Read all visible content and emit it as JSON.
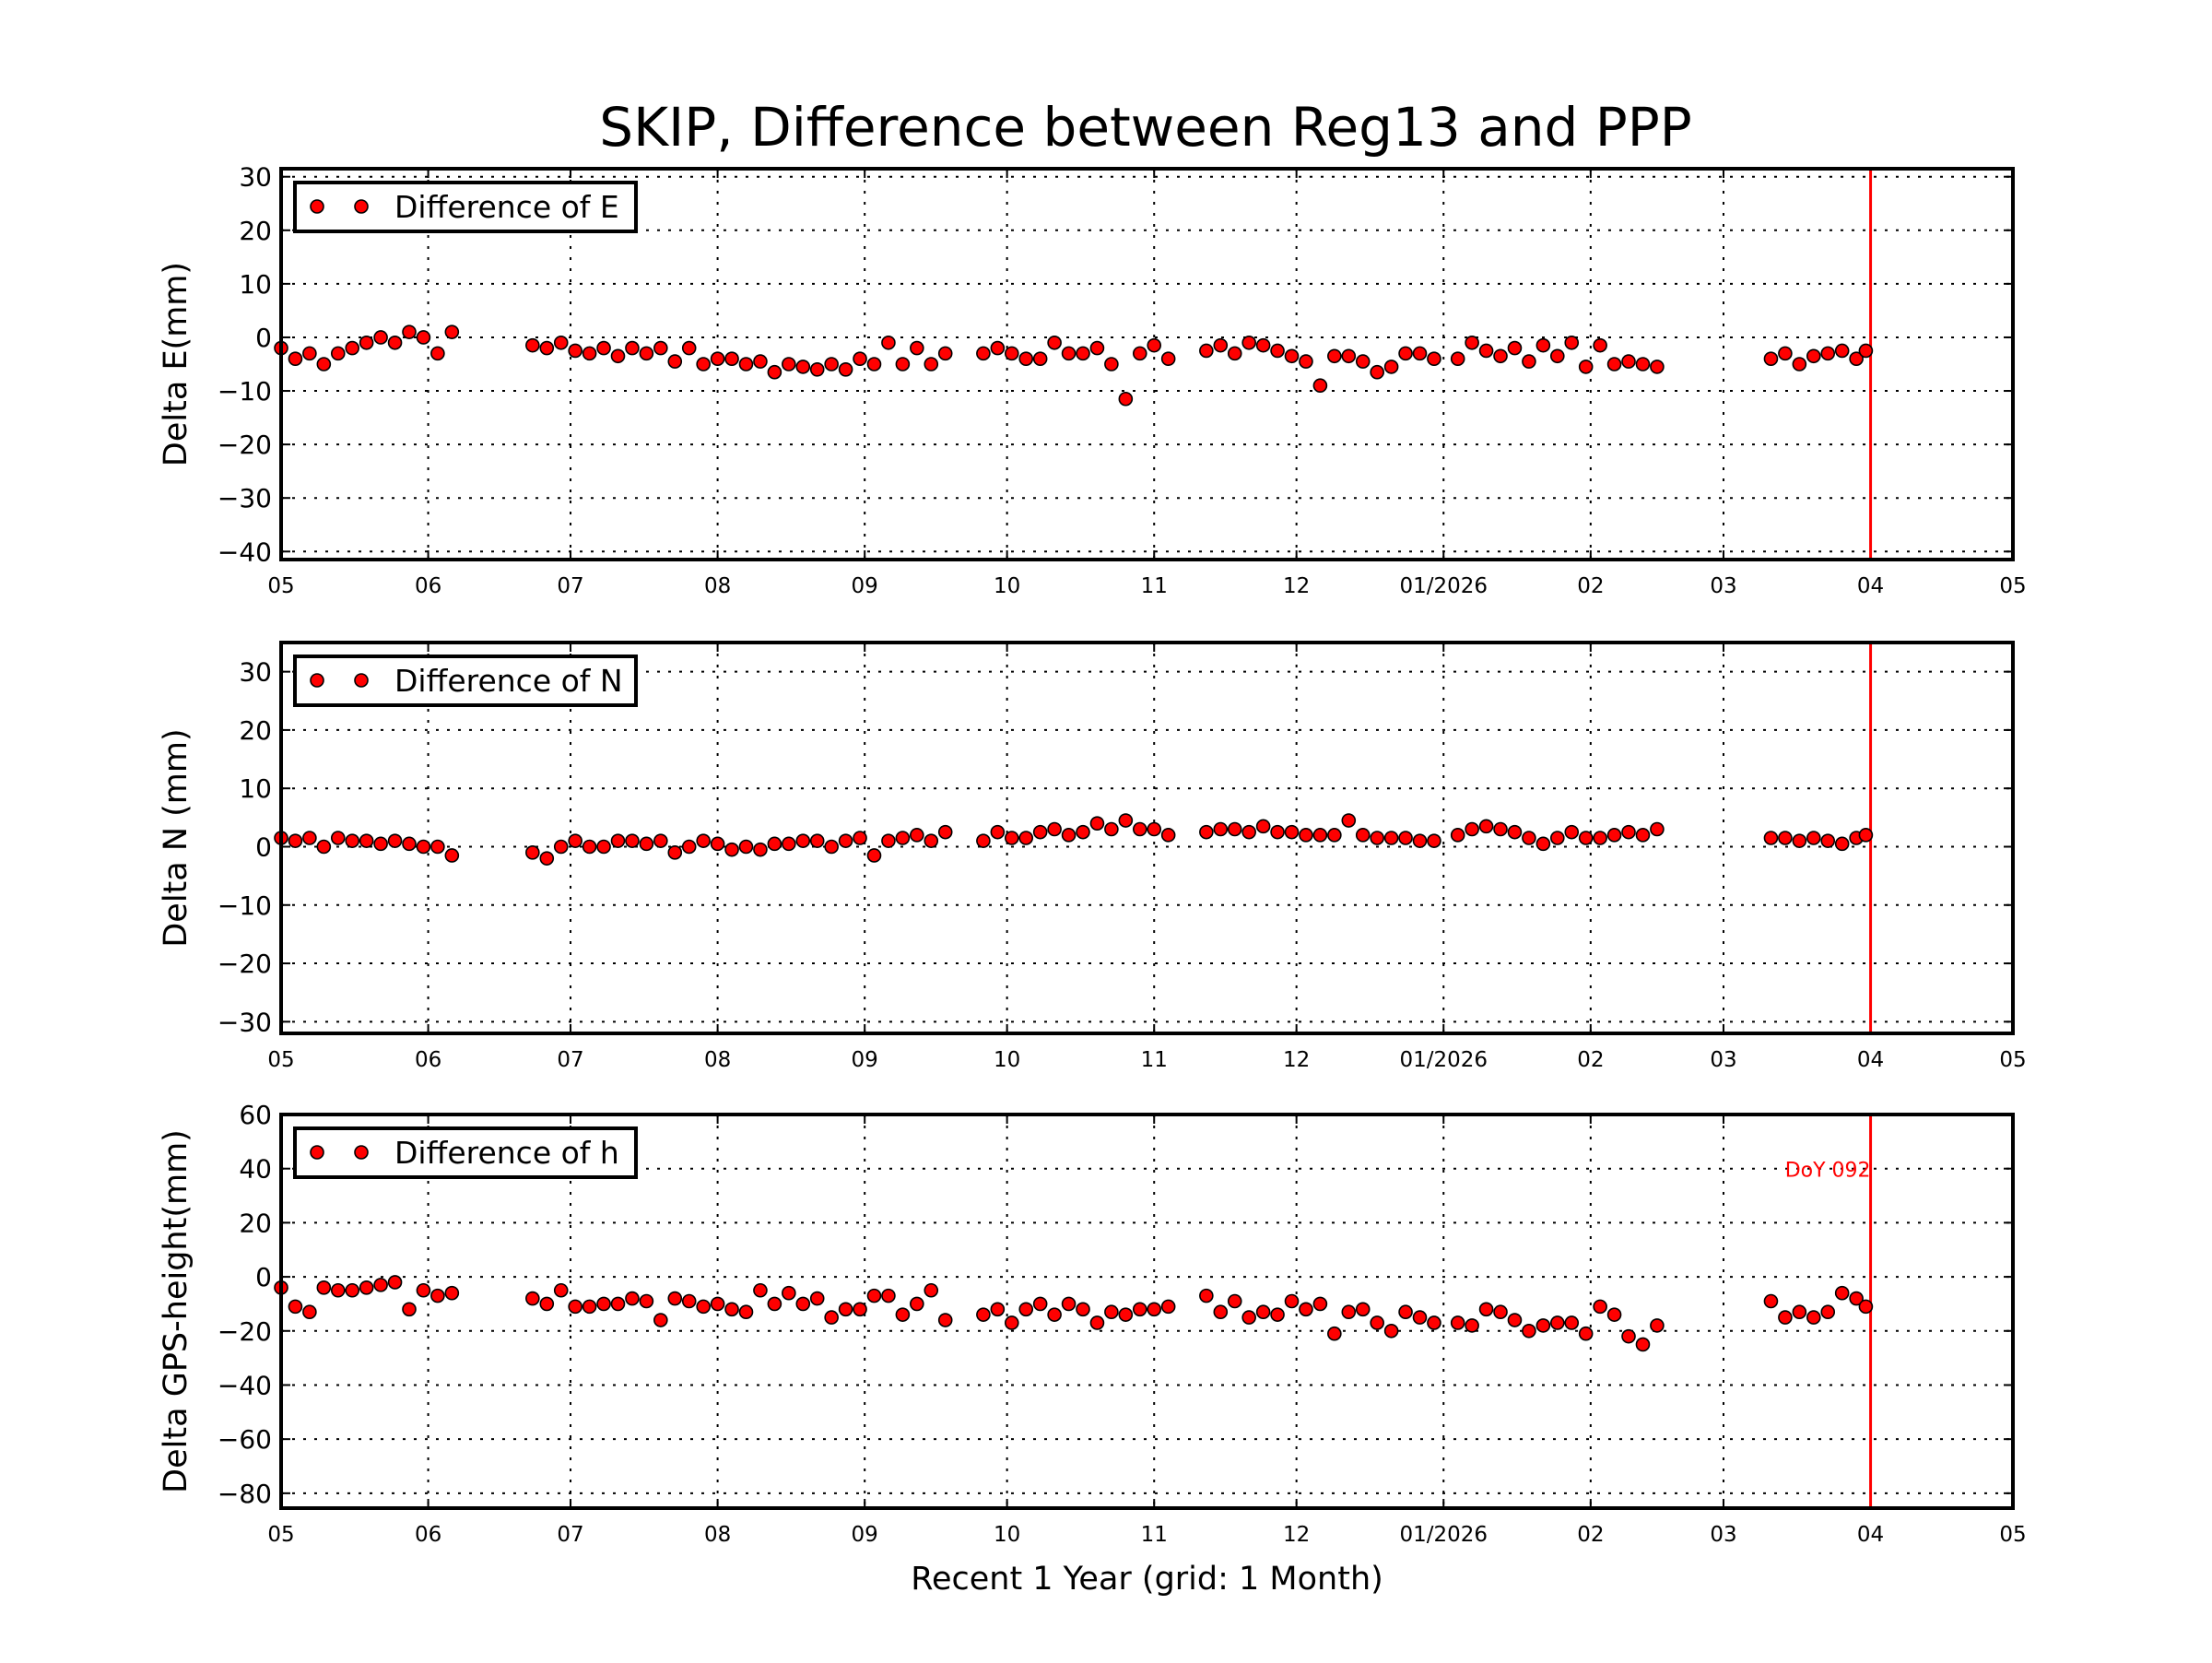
{
  "figure_title": "SKIP, Difference between Reg13 and PPP",
  "colors": {
    "marker": "#ff0000",
    "marker_edge": "#000000",
    "reference_line": "#ff0000"
  },
  "chart_data": [
    {
      "type": "scatter",
      "ylabel": "Delta E(mm)",
      "xlabel": "",
      "legend": {
        "label": "Difference of E",
        "position": "top-left"
      },
      "ylim": [
        -41.5,
        31.5
      ],
      "yticks": [
        "30",
        "20",
        "10",
        "0",
        "−10",
        "−20",
        "−30",
        "−40"
      ],
      "ytick_values": [
        30,
        20,
        10,
        0,
        -10,
        -20,
        -30,
        -40
      ],
      "xlim": [
        "2025-05-01",
        "2026-05-01"
      ],
      "xticks": [
        "05",
        "06",
        "07",
        "08",
        "09",
        "10",
        "11",
        "12",
        "01/2026",
        "02",
        "03",
        "04",
        "05"
      ],
      "xtick_dates": [
        "2025-05-01",
        "2025-06-01",
        "2025-07-01",
        "2025-08-01",
        "2025-09-01",
        "2025-10-01",
        "2025-11-01",
        "2025-12-01",
        "2026-01-01",
        "2026-02-01",
        "2026-03-01",
        "2026-04-01",
        "2026-05-01"
      ],
      "grid": true,
      "reference_line": "2026-04-01",
      "x": [
        "2025-05-01",
        "2025-05-04",
        "2025-05-07",
        "2025-05-10",
        "2025-05-13",
        "2025-05-16",
        "2025-05-19",
        "2025-05-22",
        "2025-05-25",
        "2025-05-28",
        "2025-05-31",
        "2025-06-03",
        "2025-06-06",
        "2025-06-23",
        "2025-06-26",
        "2025-06-29",
        "2025-07-02",
        "2025-07-05",
        "2025-07-08",
        "2025-07-11",
        "2025-07-14",
        "2025-07-17",
        "2025-07-20",
        "2025-07-23",
        "2025-07-26",
        "2025-07-29",
        "2025-08-01",
        "2025-08-04",
        "2025-08-07",
        "2025-08-10",
        "2025-08-13",
        "2025-08-16",
        "2025-08-19",
        "2025-08-22",
        "2025-08-25",
        "2025-08-28",
        "2025-08-31",
        "2025-09-03",
        "2025-09-06",
        "2025-09-09",
        "2025-09-12",
        "2025-09-15",
        "2025-09-18",
        "2025-09-26",
        "2025-09-29",
        "2025-10-02",
        "2025-10-05",
        "2025-10-08",
        "2025-10-11",
        "2025-10-14",
        "2025-10-17",
        "2025-10-20",
        "2025-10-23",
        "2025-10-26",
        "2025-10-29",
        "2025-11-01",
        "2025-11-04",
        "2025-11-12",
        "2025-11-15",
        "2025-11-18",
        "2025-11-21",
        "2025-11-24",
        "2025-11-27",
        "2025-11-30",
        "2025-12-03",
        "2025-12-06",
        "2025-12-09",
        "2025-12-12",
        "2025-12-15",
        "2025-12-18",
        "2025-12-21",
        "2025-12-24",
        "2025-12-27",
        "2025-12-30",
        "2026-01-04",
        "2026-01-07",
        "2026-01-10",
        "2026-01-13",
        "2026-01-16",
        "2026-01-19",
        "2026-01-22",
        "2026-01-25",
        "2026-01-28",
        "2026-01-31",
        "2026-02-03",
        "2026-02-06",
        "2026-02-09",
        "2026-02-12",
        "2026-02-15",
        "2026-03-11",
        "2026-03-14",
        "2026-03-17",
        "2026-03-20",
        "2026-03-23",
        "2026-03-26",
        "2026-03-29",
        "2026-03-31"
      ],
      "y": [
        -2,
        -4,
        -3,
        -5,
        -3,
        -2,
        -1,
        0,
        -1,
        1,
        0,
        -3,
        1,
        -1.5,
        -2,
        -1,
        -2.5,
        -3,
        -2,
        -3.5,
        -2,
        -3,
        -2,
        -4.5,
        -2,
        -5,
        -4,
        -4,
        -5,
        -4.5,
        -6.5,
        -5,
        -5.5,
        -6,
        -5,
        -6,
        -4,
        -5,
        -1,
        -5,
        -2,
        -5,
        -3,
        -3,
        -2,
        -3,
        -4,
        -4,
        -1,
        -3,
        -3,
        -2,
        -5,
        -11.5,
        -3,
        -1.5,
        -4,
        -2.5,
        -1.5,
        -3,
        -1,
        -1.5,
        -2.5,
        -3.5,
        -4.5,
        -9,
        -3.5,
        -3.5,
        -4.5,
        -6.5,
        -5.5,
        -3,
        -3,
        -4,
        -4,
        -1,
        -2.5,
        -3.5,
        -2,
        -4.5,
        -1.5,
        -3.5,
        -1,
        -5.5,
        -1.5,
        -5,
        -4.5,
        -5,
        -5.5,
        -4,
        -3,
        -5,
        -3.5,
        -3,
        -2.5,
        -4,
        -2.5
      ]
    },
    {
      "type": "scatter",
      "ylabel": "Delta N (mm)",
      "xlabel": "",
      "legend": {
        "label": "Difference of N",
        "position": "top-left"
      },
      "ylim": [
        -32,
        35
      ],
      "yticks": [
        "30",
        "20",
        "10",
        "0",
        "−10",
        "−20",
        "−30"
      ],
      "ytick_values": [
        30,
        20,
        10,
        0,
        -10,
        -20,
        -30
      ],
      "xlim": [
        "2025-05-01",
        "2026-05-01"
      ],
      "xticks": [
        "05",
        "06",
        "07",
        "08",
        "09",
        "10",
        "11",
        "12",
        "01/2026",
        "02",
        "03",
        "04",
        "05"
      ],
      "xtick_dates": [
        "2025-05-01",
        "2025-06-01",
        "2025-07-01",
        "2025-08-01",
        "2025-09-01",
        "2025-10-01",
        "2025-11-01",
        "2025-12-01",
        "2026-01-01",
        "2026-02-01",
        "2026-03-01",
        "2026-04-01",
        "2026-05-01"
      ],
      "grid": true,
      "reference_line": "2026-04-01",
      "x": [
        "2025-05-01",
        "2025-05-04",
        "2025-05-07",
        "2025-05-10",
        "2025-05-13",
        "2025-05-16",
        "2025-05-19",
        "2025-05-22",
        "2025-05-25",
        "2025-05-28",
        "2025-05-31",
        "2025-06-03",
        "2025-06-06",
        "2025-06-23",
        "2025-06-26",
        "2025-06-29",
        "2025-07-02",
        "2025-07-05",
        "2025-07-08",
        "2025-07-11",
        "2025-07-14",
        "2025-07-17",
        "2025-07-20",
        "2025-07-23",
        "2025-07-26",
        "2025-07-29",
        "2025-08-01",
        "2025-08-04",
        "2025-08-07",
        "2025-08-10",
        "2025-08-13",
        "2025-08-16",
        "2025-08-19",
        "2025-08-22",
        "2025-08-25",
        "2025-08-28",
        "2025-08-31",
        "2025-09-03",
        "2025-09-06",
        "2025-09-09",
        "2025-09-12",
        "2025-09-15",
        "2025-09-18",
        "2025-09-26",
        "2025-09-29",
        "2025-10-02",
        "2025-10-05",
        "2025-10-08",
        "2025-10-11",
        "2025-10-14",
        "2025-10-17",
        "2025-10-20",
        "2025-10-23",
        "2025-10-26",
        "2025-10-29",
        "2025-11-01",
        "2025-11-04",
        "2025-11-12",
        "2025-11-15",
        "2025-11-18",
        "2025-11-21",
        "2025-11-24",
        "2025-11-27",
        "2025-11-30",
        "2025-12-03",
        "2025-12-06",
        "2025-12-09",
        "2025-12-12",
        "2025-12-15",
        "2025-12-18",
        "2025-12-21",
        "2025-12-24",
        "2025-12-27",
        "2025-12-30",
        "2026-01-04",
        "2026-01-07",
        "2026-01-10",
        "2026-01-13",
        "2026-01-16",
        "2026-01-19",
        "2026-01-22",
        "2026-01-25",
        "2026-01-28",
        "2026-01-31",
        "2026-02-03",
        "2026-02-06",
        "2026-02-09",
        "2026-02-12",
        "2026-02-15",
        "2026-03-11",
        "2026-03-14",
        "2026-03-17",
        "2026-03-20",
        "2026-03-23",
        "2026-03-26",
        "2026-03-29",
        "2026-03-31"
      ],
      "y": [
        1.5,
        1,
        1.5,
        0,
        1.5,
        1,
        1,
        0.5,
        1,
        0.5,
        0,
        0,
        -1.5,
        -1,
        -2,
        0,
        1,
        0,
        0,
        1,
        1,
        0.5,
        1,
        -1,
        0,
        1,
        0.5,
        -0.5,
        0,
        -0.5,
        0.5,
        0.5,
        1,
        1,
        0,
        1,
        1.5,
        -1.5,
        1,
        1.5,
        2,
        1,
        2.5,
        1,
        2.5,
        1.5,
        1.5,
        2.5,
        3,
        2,
        2.5,
        4,
        3,
        4.5,
        3,
        3,
        2,
        2.5,
        3,
        3,
        2.5,
        3.5,
        2.5,
        2.5,
        2,
        2,
        2,
        4.5,
        2,
        1.5,
        1.5,
        1.5,
        1,
        1,
        2,
        3,
        3.5,
        3,
        2.5,
        1.5,
        0.5,
        1.5,
        2.5,
        1.5,
        1.5,
        2,
        2.5,
        2,
        3,
        1.5,
        1.5,
        1,
        1.5,
        1,
        0.5,
        1.5,
        2
      ]
    },
    {
      "type": "scatter",
      "ylabel": "Delta GPS-height(mm)",
      "xlabel": "Recent 1 Year (grid: 1 Month)",
      "legend": {
        "label": "Difference of h",
        "position": "top-left"
      },
      "annotation": "DoY 092",
      "ylim": [
        -85.5,
        60
      ],
      "yticks": [
        "60",
        "40",
        "20",
        "0",
        "−20",
        "−40",
        "−60",
        "−80"
      ],
      "ytick_values": [
        60,
        40,
        20,
        0,
        -20,
        -40,
        -60,
        -80
      ],
      "xlim": [
        "2025-05-01",
        "2026-05-01"
      ],
      "xticks": [
        "05",
        "06",
        "07",
        "08",
        "09",
        "10",
        "11",
        "12",
        "01/2026",
        "02",
        "03",
        "04",
        "05"
      ],
      "xtick_dates": [
        "2025-05-01",
        "2025-06-01",
        "2025-07-01",
        "2025-08-01",
        "2025-09-01",
        "2025-10-01",
        "2025-11-01",
        "2025-12-01",
        "2026-01-01",
        "2026-02-01",
        "2026-03-01",
        "2026-04-01",
        "2026-05-01"
      ],
      "grid": true,
      "reference_line": "2026-04-01",
      "x": [
        "2025-05-01",
        "2025-05-04",
        "2025-05-07",
        "2025-05-10",
        "2025-05-13",
        "2025-05-16",
        "2025-05-19",
        "2025-05-22",
        "2025-05-25",
        "2025-05-28",
        "2025-05-31",
        "2025-06-03",
        "2025-06-06",
        "2025-06-23",
        "2025-06-26",
        "2025-06-29",
        "2025-07-02",
        "2025-07-05",
        "2025-07-08",
        "2025-07-11",
        "2025-07-14",
        "2025-07-17",
        "2025-07-20",
        "2025-07-23",
        "2025-07-26",
        "2025-07-29",
        "2025-08-01",
        "2025-08-04",
        "2025-08-07",
        "2025-08-10",
        "2025-08-13",
        "2025-08-16",
        "2025-08-19",
        "2025-08-22",
        "2025-08-25",
        "2025-08-28",
        "2025-08-31",
        "2025-09-03",
        "2025-09-06",
        "2025-09-09",
        "2025-09-12",
        "2025-09-15",
        "2025-09-18",
        "2025-09-26",
        "2025-09-29",
        "2025-10-02",
        "2025-10-05",
        "2025-10-08",
        "2025-10-11",
        "2025-10-14",
        "2025-10-17",
        "2025-10-20",
        "2025-10-23",
        "2025-10-26",
        "2025-10-29",
        "2025-11-01",
        "2025-11-04",
        "2025-11-12",
        "2025-11-15",
        "2025-11-18",
        "2025-11-21",
        "2025-11-24",
        "2025-11-27",
        "2025-11-30",
        "2025-12-03",
        "2025-12-06",
        "2025-12-09",
        "2025-12-12",
        "2025-12-15",
        "2025-12-18",
        "2025-12-21",
        "2025-12-24",
        "2025-12-27",
        "2025-12-30",
        "2026-01-04",
        "2026-01-07",
        "2026-01-10",
        "2026-01-13",
        "2026-01-16",
        "2026-01-19",
        "2026-01-22",
        "2026-01-25",
        "2026-01-28",
        "2026-01-31",
        "2026-02-03",
        "2026-02-06",
        "2026-02-09",
        "2026-02-12",
        "2026-02-15",
        "2026-03-11",
        "2026-03-14",
        "2026-03-17",
        "2026-03-20",
        "2026-03-23",
        "2026-03-26",
        "2026-03-29",
        "2026-03-31"
      ],
      "y": [
        -4,
        -11,
        -13,
        -4,
        -5,
        -5,
        -4,
        -3,
        -2,
        -12,
        -5,
        -7,
        -6,
        -8,
        -10,
        -5,
        -11,
        -11,
        -10,
        -10,
        -8,
        -9,
        -16,
        -8,
        -9,
        -11,
        -10,
        -12,
        -13,
        -5,
        -10,
        -6,
        -10,
        -8,
        -15,
        -12,
        -12,
        -7,
        -7,
        -14,
        -10,
        -5,
        -16,
        -14,
        -12,
        -17,
        -12,
        -10,
        -14,
        -10,
        -12,
        -17,
        -13,
        -14,
        -12,
        -12,
        -11,
        -7,
        -13,
        -9,
        -15,
        -13,
        -14,
        -9,
        -12,
        -10,
        -21,
        -13,
        -12,
        -17,
        -20,
        -13,
        -15,
        -17,
        -17,
        -18,
        -12,
        -13,
        -16,
        -20,
        -18,
        -17,
        -17,
        -21,
        -11,
        -14,
        -22,
        -25,
        -18,
        -9,
        -15,
        -13,
        -15,
        -13,
        -6,
        -8,
        -11
      ]
    }
  ]
}
